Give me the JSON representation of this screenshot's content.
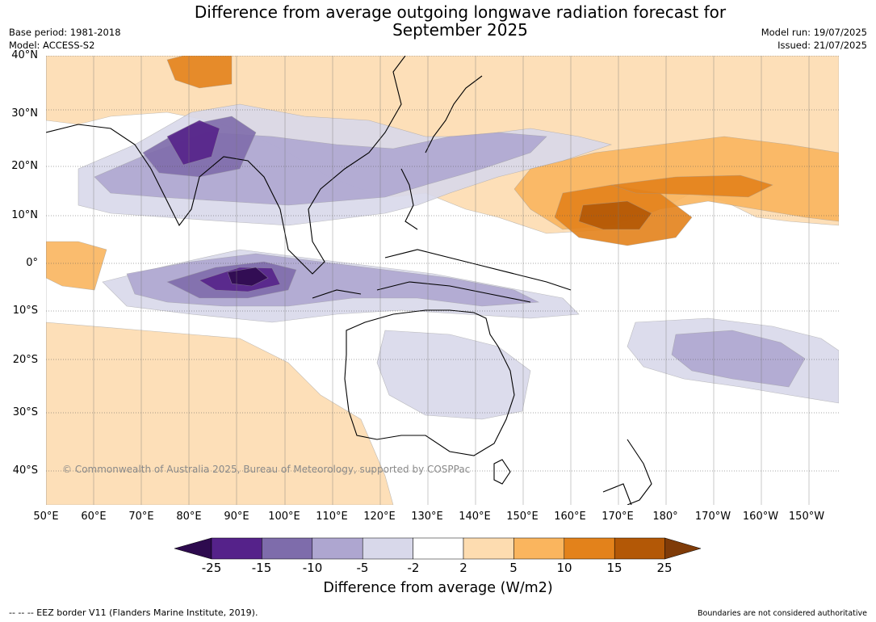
{
  "title_line1": "Difference from average outgoing longwave radiation forecast for",
  "title_line2": "September 2025",
  "meta_left": {
    "base_period": "Base period: 1981-2018",
    "model": "Model: ACCESS-S2"
  },
  "meta_right": {
    "model_run": "Model run: 19/07/2025",
    "issued": "Issued: 21/07/2025"
  },
  "lat_labels": [
    "40°N",
    "30°N",
    "20°N",
    "10°N",
    "0°",
    "10°S",
    "20°S",
    "30°S",
    "40°S"
  ],
  "lon_labels": [
    "50°E",
    "60°E",
    "70°E",
    "80°E",
    "90°E",
    "100°E",
    "110°E",
    "120°E",
    "130°E",
    "140°E",
    "150°E",
    "160°E",
    "170°E",
    "180°",
    "170°W",
    "160°W",
    "150°W"
  ],
  "colorbar": {
    "ticks": [
      "-25",
      "-15",
      "-10",
      "-5",
      "-2",
      "2",
      "5",
      "10",
      "15",
      "25"
    ],
    "colors": [
      "#2d0a4e",
      "#55228a",
      "#7e6cab",
      "#aea6d0",
      "#d8d8ea",
      "#ffffff",
      "#fddcb0",
      "#fab55e",
      "#e3821b",
      "#b35806",
      "#7f3b08"
    ],
    "title": "Difference from average (W/m2)"
  },
  "copyright": "© Commonwealth of Australia 2025, Bureau of Meteorology, supported by COSPPac",
  "footer_left": "--  --  -- EEZ border V11 (Flanders Marine Institute, 2019).",
  "footer_right": "Boundaries are not considered authoritative"
}
